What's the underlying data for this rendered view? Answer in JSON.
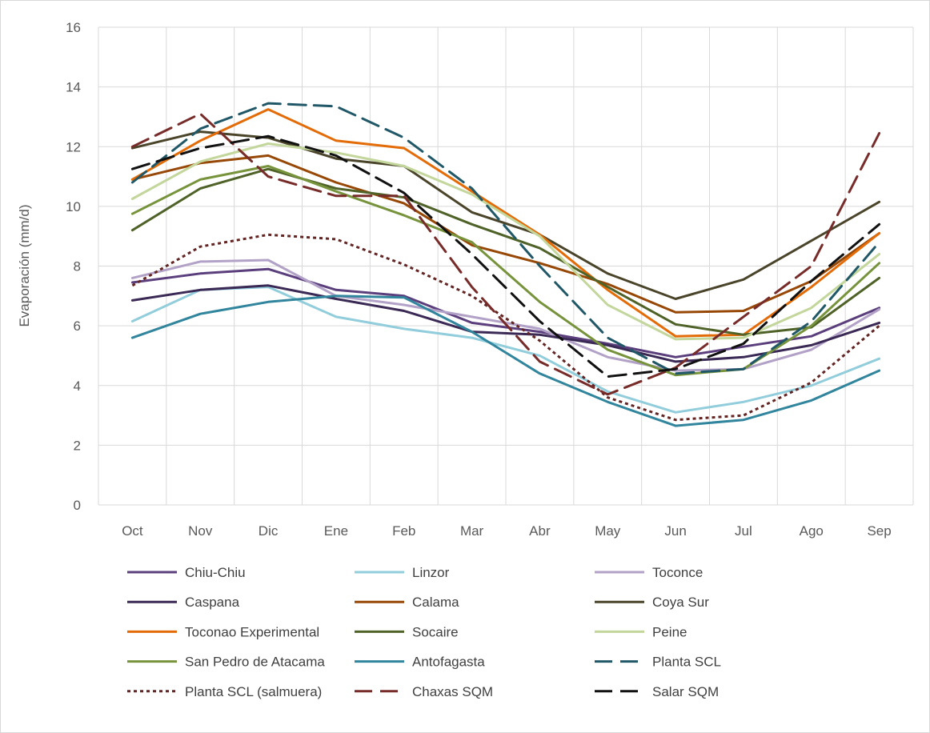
{
  "chart_data": {
    "type": "line",
    "title": "",
    "xlabel": "",
    "ylabel": "Evaporación (mm/d)",
    "ylim": [
      0,
      16
    ],
    "yticks": [
      0,
      2,
      4,
      6,
      8,
      10,
      12,
      14,
      16
    ],
    "grid": true,
    "legend_position": "bottom",
    "categories": [
      "Oct",
      "Nov",
      "Dic",
      "Ene",
      "Feb",
      "Mar",
      "Abr",
      "May",
      "Jun",
      "Jul",
      "Ago",
      "Sep"
    ],
    "series": [
      {
        "name": "Chiu-Chiu",
        "color": "#5b3f7d",
        "dash": "solid",
        "values": [
          7.45,
          7.75,
          7.9,
          7.2,
          7.0,
          6.1,
          5.8,
          5.4,
          4.95,
          5.3,
          5.65,
          6.6
        ]
      },
      {
        "name": "Linzor",
        "color": "#92cddc",
        "dash": "solid",
        "values": [
          6.15,
          7.2,
          7.3,
          6.3,
          5.9,
          5.6,
          5.0,
          3.8,
          3.1,
          3.45,
          4.0,
          4.9
        ]
      },
      {
        "name": "Toconce",
        "color": "#b3a2c7",
        "dash": "solid",
        "values": [
          7.6,
          8.15,
          8.2,
          7.0,
          6.7,
          6.3,
          5.9,
          4.95,
          4.5,
          4.55,
          5.2,
          6.55
        ]
      },
      {
        "name": "Caspana",
        "color": "#3b2a55",
        "dash": "solid",
        "values": [
          6.85,
          7.2,
          7.35,
          6.9,
          6.5,
          5.8,
          5.7,
          5.35,
          4.8,
          4.95,
          5.35,
          6.1
        ]
      },
      {
        "name": "Calama",
        "color": "#974806",
        "dash": "solid",
        "values": [
          10.9,
          11.45,
          11.7,
          10.8,
          10.1,
          8.7,
          8.1,
          7.4,
          6.45,
          6.5,
          7.5,
          9.1
        ]
      },
      {
        "name": "Coya Sur",
        "color": "#4a452a",
        "dash": "solid",
        "values": [
          11.95,
          12.5,
          12.3,
          11.6,
          11.35,
          9.8,
          9.05,
          7.75,
          6.9,
          7.55,
          8.85,
          10.15
        ]
      },
      {
        "name": "Toconao Experimental",
        "color": "#e36c09",
        "dash": "solid",
        "values": [
          10.9,
          12.2,
          13.25,
          12.2,
          11.95,
          10.5,
          9.05,
          7.2,
          5.65,
          5.7,
          7.3,
          9.1
        ]
      },
      {
        "name": "Socaire",
        "color": "#4f6228",
        "dash": "solid",
        "values": [
          9.2,
          10.6,
          11.25,
          10.6,
          10.3,
          9.4,
          8.6,
          7.3,
          6.05,
          5.7,
          5.95,
          7.6
        ]
      },
      {
        "name": "Peine",
        "color": "#c3d69b",
        "dash": "solid",
        "values": [
          10.25,
          11.5,
          12.1,
          11.8,
          11.35,
          10.4,
          9.0,
          6.7,
          5.55,
          5.6,
          6.6,
          8.4
        ]
      },
      {
        "name": "San Pedro de Atacama",
        "color": "#77933c",
        "dash": "solid",
        "values": [
          9.75,
          10.9,
          11.35,
          10.5,
          9.7,
          8.8,
          6.8,
          5.2,
          4.35,
          4.55,
          6.0,
          8.1
        ]
      },
      {
        "name": "Antofagasta",
        "color": "#31859c",
        "dash": "solid",
        "values": [
          5.6,
          6.4,
          6.8,
          7.0,
          6.95,
          5.8,
          4.4,
          3.45,
          2.65,
          2.85,
          3.5,
          4.5
        ]
      },
      {
        "name": "Planta SCL",
        "color": "#215868",
        "dash": "longdash",
        "values": [
          10.8,
          12.6,
          13.45,
          13.35,
          12.3,
          10.6,
          8.0,
          5.6,
          4.4,
          4.55,
          6.15,
          8.8
        ]
      },
      {
        "name": "Planta SCL (salmuera)",
        "color": "#632523",
        "dash": "dot",
        "values": [
          7.35,
          8.65,
          9.05,
          8.9,
          8.05,
          7.0,
          5.5,
          3.6,
          2.85,
          3.0,
          4.1,
          6.0
        ]
      },
      {
        "name": "Chaxas SQM",
        "color": "#772c2a",
        "dash": "longdash",
        "values": [
          12.0,
          13.1,
          11.0,
          10.35,
          10.35,
          7.3,
          4.8,
          3.7,
          4.6,
          6.3,
          8.0,
          12.45
        ]
      },
      {
        "name": "Salar SQM",
        "color": "#111111",
        "dash": "longdash",
        "values": [
          11.25,
          11.95,
          12.35,
          11.7,
          10.45,
          8.4,
          6.15,
          4.3,
          4.55,
          5.4,
          7.5,
          9.4
        ]
      }
    ]
  }
}
